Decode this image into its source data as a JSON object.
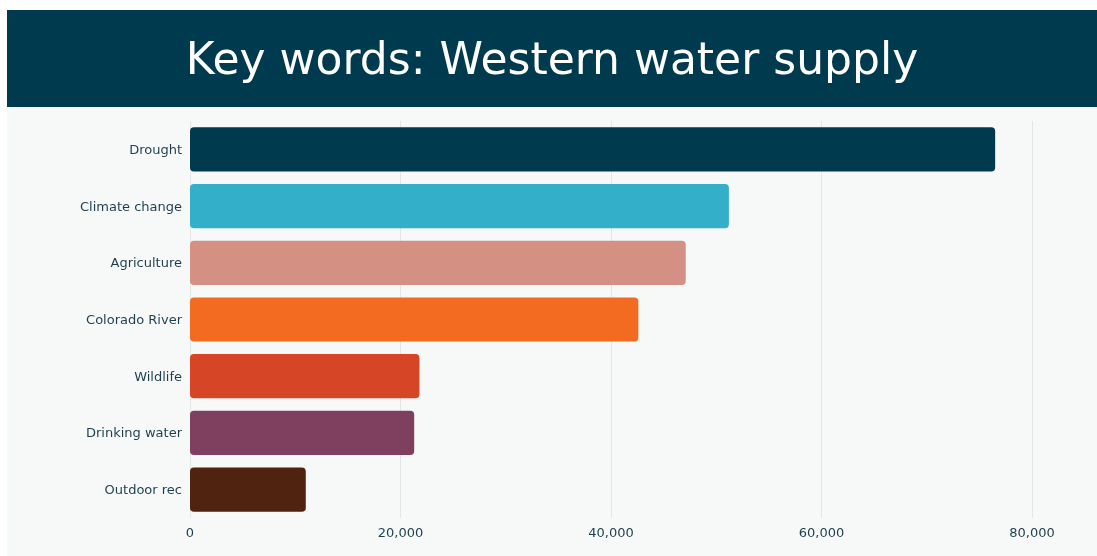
{
  "chart_data": {
    "type": "bar",
    "orientation": "horizontal",
    "title": "Key words: Western water supply",
    "categories": [
      "Drought",
      "Climate change",
      "Agriculture",
      "Colorado River",
      "Wildlife",
      "Drinking water",
      "Outdoor rec"
    ],
    "values": [
      76500,
      51200,
      47100,
      42600,
      21800,
      21300,
      11000
    ],
    "colors": [
      "#003a4f",
      "#33afc9",
      "#d49183",
      "#f26b21",
      "#d64525",
      "#7f3f5e",
      "#4f2310"
    ],
    "xlim": [
      0,
      80000
    ],
    "xticks": [
      {
        "value": 0,
        "label": "0"
      },
      {
        "value": 20000,
        "label": "20,000"
      },
      {
        "value": 40000,
        "label": "40,000"
      },
      {
        "value": 60000,
        "label": "60,000"
      },
      {
        "value": 80000,
        "label": "80,000"
      }
    ],
    "grid": "x"
  }
}
